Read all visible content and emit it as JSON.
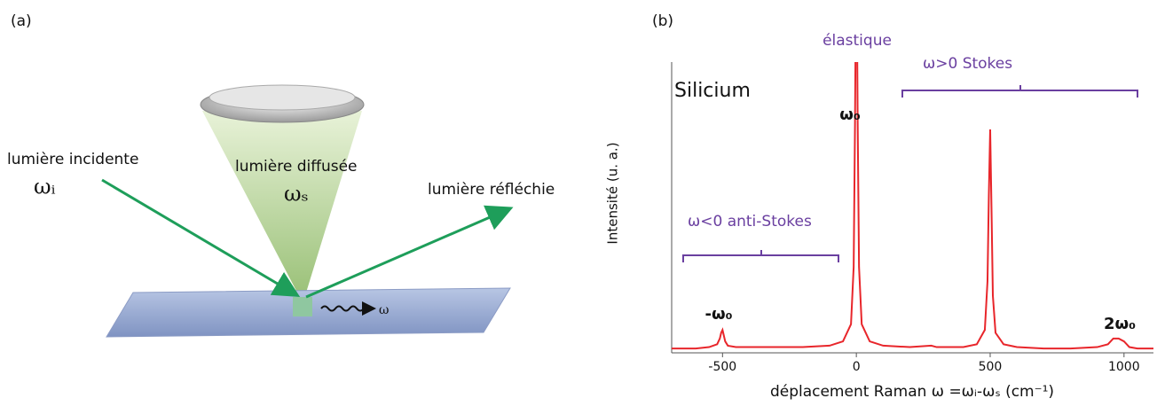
{
  "panel_a": {
    "label": "(a)",
    "incident": "lumière incidente",
    "incident_freq": "ωᵢ",
    "scattered": "lumière diffusée",
    "scattered_freq": "ωₛ",
    "reflected": "lumière réfléchie",
    "phonon": "ω"
  },
  "chart_data": {
    "type": "line",
    "panel_label": "(b)",
    "title": "Silicium",
    "x_label": "déplacement Raman  ω =ωᵢ-ωₛ (cm⁻¹)",
    "y_label": "Intensité (u. a.)",
    "annotations": [
      "élastique",
      "ω>0  Stokes",
      "ω<0  anti-Stokes",
      "-ω₀",
      "ω₀",
      "2ω₀"
    ],
    "xlim": [
      -690,
      1110
    ],
    "ylim": [
      0,
      100
    ],
    "xticks": [
      -500,
      0,
      500,
      1000
    ],
    "series": [
      {
        "color": "#e8262b",
        "x": [
          -690,
          -600,
          -550,
          -520,
          -510,
          -505,
          -500,
          -495,
          -490,
          -480,
          -450,
          -400,
          -300,
          -200,
          -100,
          -50,
          -20,
          -10,
          -5,
          0,
          5,
          10,
          20,
          50,
          100,
          200,
          280,
          300,
          320,
          400,
          450,
          480,
          490,
          495,
          500,
          505,
          510,
          520,
          550,
          600,
          700,
          800,
          900,
          940,
          960,
          980,
          1000,
          1020,
          1050,
          1110
        ],
        "values": [
          1.5,
          1.5,
          2,
          3,
          5,
          7,
          8,
          6,
          4,
          2.5,
          2,
          2,
          2,
          2,
          2.5,
          4,
          10,
          30,
          80,
          150,
          80,
          30,
          10,
          4,
          2.5,
          2,
          2.5,
          2,
          2,
          2,
          3,
          8,
          25,
          55,
          78,
          50,
          20,
          7,
          3,
          2,
          1.5,
          1.5,
          2,
          3,
          5,
          5,
          4,
          2,
          1.5,
          1.5
        ]
      }
    ]
  }
}
